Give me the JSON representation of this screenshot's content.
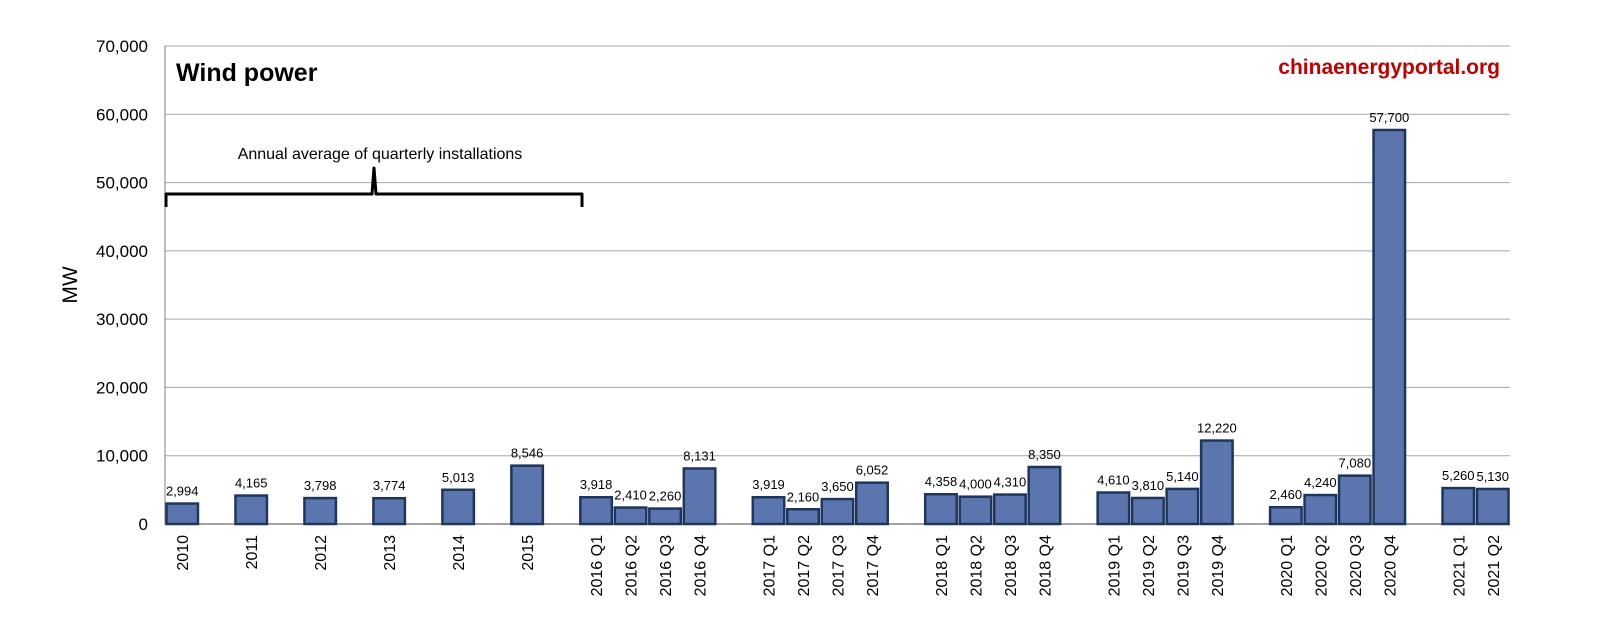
{
  "chart_data": {
    "type": "bar",
    "title": "Wind power",
    "watermark": "chinaenergyportal.org",
    "ylabel": "MW",
    "xlabel": "",
    "ylim": [
      0,
      70000
    ],
    "yticks": [
      0,
      10000,
      20000,
      30000,
      40000,
      50000,
      60000,
      70000
    ],
    "ytick_labels": [
      "0",
      "10,000",
      "20,000",
      "30,000",
      "40,000",
      "50,000",
      "60,000",
      "70,000"
    ],
    "grid": true,
    "annotation": "Annual average of quarterly installations",
    "colors": {
      "bar": "#5B76AE",
      "bar_border": "#1F355C",
      "grid": "#A6A6A6",
      "watermark": "#C00000"
    },
    "groups": [
      {
        "bars": [
          {
            "label": "2010",
            "value": 2994,
            "value_label": "2,994"
          }
        ]
      },
      {
        "bars": [
          {
            "label": "2011",
            "value": 4165,
            "value_label": "4,165"
          }
        ]
      },
      {
        "bars": [
          {
            "label": "2012",
            "value": 3798,
            "value_label": "3,798"
          }
        ]
      },
      {
        "bars": [
          {
            "label": "2013",
            "value": 3774,
            "value_label": "3,774"
          }
        ]
      },
      {
        "bars": [
          {
            "label": "2014",
            "value": 5013,
            "value_label": "5,013"
          }
        ]
      },
      {
        "bars": [
          {
            "label": "2015",
            "value": 8546,
            "value_label": "8,546"
          }
        ]
      },
      {
        "bars": [
          {
            "label": "2016 Q1",
            "value": 3918,
            "value_label": "3,918"
          },
          {
            "label": "2016 Q2",
            "value": 2410,
            "value_label": "2,410"
          },
          {
            "label": "2016 Q3",
            "value": 2260,
            "value_label": "2,260"
          },
          {
            "label": "2016 Q4",
            "value": 8131,
            "value_label": "8,131"
          }
        ]
      },
      {
        "bars": [
          {
            "label": "2017 Q1",
            "value": 3919,
            "value_label": "3,919"
          },
          {
            "label": "2017 Q2",
            "value": 2160,
            "value_label": "2,160"
          },
          {
            "label": "2017 Q3",
            "value": 3650,
            "value_label": "3,650"
          },
          {
            "label": "2017 Q4",
            "value": 6052,
            "value_label": "6,052"
          }
        ]
      },
      {
        "bars": [
          {
            "label": "2018 Q1",
            "value": 4358,
            "value_label": "4,358"
          },
          {
            "label": "2018 Q2",
            "value": 4000,
            "value_label": "4,000"
          },
          {
            "label": "2018 Q3",
            "value": 4310,
            "value_label": "4,310"
          },
          {
            "label": "2018 Q4",
            "value": 8350,
            "value_label": "8,350"
          }
        ]
      },
      {
        "bars": [
          {
            "label": "2019 Q1",
            "value": 4610,
            "value_label": "4,610"
          },
          {
            "label": "2019 Q2",
            "value": 3810,
            "value_label": "3,810"
          },
          {
            "label": "2019 Q3",
            "value": 5140,
            "value_label": "5,140"
          },
          {
            "label": "2019 Q4",
            "value": 12220,
            "value_label": "12,220"
          }
        ]
      },
      {
        "bars": [
          {
            "label": "2020 Q1",
            "value": 2460,
            "value_label": "2,460"
          },
          {
            "label": "2020 Q2",
            "value": 4240,
            "value_label": "4,240"
          },
          {
            "label": "2020 Q3",
            "value": 7080,
            "value_label": "7,080"
          },
          {
            "label": "2020 Q4",
            "value": 57700,
            "value_label": "57,700"
          }
        ]
      },
      {
        "bars": [
          {
            "label": "2021 Q1",
            "value": 5260,
            "value_label": "5,260"
          },
          {
            "label": "2021 Q2",
            "value": 5130,
            "value_label": "5,130"
          }
        ]
      }
    ]
  }
}
